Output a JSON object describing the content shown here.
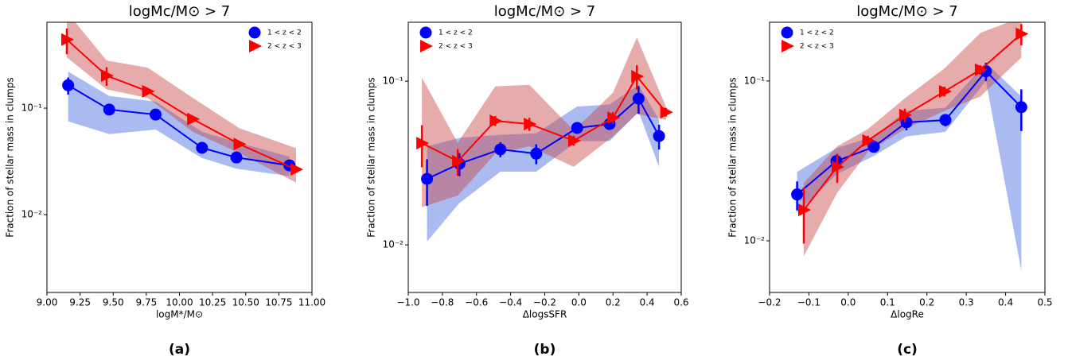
{
  "chart_data": [
    {
      "type": "line",
      "title": "logMc/M⊙ > 7",
      "xlabel": "logM*/M⊙",
      "ylabel": "Fraction of stellar mass in clumps",
      "caption": "(a)",
      "yscale": "log",
      "grid": false,
      "legend": "upper right",
      "xlim": [
        9.0,
        11.0
      ],
      "ylim": [
        0.00186,
        0.64
      ],
      "xticks": [
        {
          "value": 9.0,
          "label": "9.00"
        },
        {
          "value": 9.25,
          "label": "9.25"
        },
        {
          "value": 9.5,
          "label": "9.50"
        },
        {
          "value": 9.75,
          "label": "9.75"
        },
        {
          "value": 10.0,
          "label": "10.00"
        },
        {
          "value": 10.25,
          "label": "10.25"
        },
        {
          "value": 10.5,
          "label": "10.50"
        },
        {
          "value": 10.75,
          "label": "10.75"
        },
        {
          "value": 11.0,
          "label": "11.00"
        }
      ],
      "yticks": [
        {
          "value": 0.01,
          "label": "10⁻²"
        },
        {
          "value": 0.1,
          "label": "10⁻¹"
        }
      ],
      "series": [
        {
          "name": "1 < z < 2",
          "color": "#0000ff",
          "band_color": "#4169e1",
          "marker": "circle",
          "x": [
            9.16,
            9.47,
            9.82,
            10.17,
            10.43,
            10.83
          ],
          "values": [
            0.164,
            0.097,
            0.087,
            0.0424,
            0.0344,
            0.029
          ],
          "errors": [
            0.03,
            0.006,
            0.006,
            0.003,
            0.002,
            0.002
          ],
          "upper": [
            0.22,
            0.13,
            0.115,
            0.06,
            0.048,
            0.035
          ],
          "lower": [
            0.075,
            0.057,
            0.063,
            0.034,
            0.027,
            0.023
          ]
        },
        {
          "name": "2 < z < 3",
          "color": "#ff0000",
          "band_color": "#c84646",
          "marker": "triangle",
          "x": [
            9.15,
            9.45,
            9.76,
            10.1,
            10.45,
            10.88
          ],
          "values": [
            0.44,
            0.202,
            0.144,
            0.079,
            0.046,
            0.0266
          ],
          "errors": [
            0.12,
            0.04,
            0.01,
            0.005,
            0.003,
            0.002
          ],
          "upper": [
            0.8,
            0.28,
            0.24,
            0.125,
            0.065,
            0.042
          ],
          "lower": [
            0.3,
            0.15,
            0.125,
            0.06,
            0.038,
            0.02
          ]
        }
      ]
    },
    {
      "type": "line",
      "title": "logMc/M⊙ > 7",
      "xlabel": "ΔlogsSFR",
      "ylabel": "Fraction of stellar mass in clumps",
      "caption": "(b)",
      "yscale": "log",
      "grid": false,
      "legend": "upper left",
      "xlim": [
        -1.0,
        0.6
      ],
      "ylim": [
        0.00512,
        0.229
      ],
      "xticks": [
        {
          "value": -1.0,
          "label": "−1.0"
        },
        {
          "value": -0.8,
          "label": "−0.8"
        },
        {
          "value": -0.6,
          "label": "−0.6"
        },
        {
          "value": -0.4,
          "label": "−0.4"
        },
        {
          "value": -0.2,
          "label": "−0.2"
        },
        {
          "value": 0.0,
          "label": "0.0"
        },
        {
          "value": 0.2,
          "label": "0.2"
        },
        {
          "value": 0.4,
          "label": "0.4"
        },
        {
          "value": 0.6,
          "label": "0.6"
        }
      ],
      "yticks": [
        {
          "value": 0.01,
          "label": "10⁻²"
        },
        {
          "value": 0.1,
          "label": "10⁻¹"
        }
      ],
      "series": [
        {
          "name": "1 < z < 2",
          "color": "#0000ff",
          "band_color": "#4169e1",
          "marker": "circle",
          "x": [
            -0.89,
            -0.7,
            -0.46,
            -0.25,
            -0.01,
            0.18,
            0.35,
            0.47
          ],
          "values": [
            0.0253,
            0.0313,
            0.0383,
            0.0361,
            0.0518,
            0.0547,
            0.0782,
            0.0462
          ],
          "errors": [
            0.008,
            0.005,
            0.004,
            0.005,
            0.004,
            0.004,
            0.015,
            0.008
          ],
          "upper": [
            0.04,
            0.045,
            0.047,
            0.048,
            0.07,
            0.072,
            0.095,
            0.058
          ],
          "lower": [
            0.0105,
            0.018,
            0.028,
            0.028,
            0.043,
            0.043,
            0.065,
            0.03
          ]
        },
        {
          "name": "2 < z < 3",
          "color": "#ff0000",
          "band_color": "#c84646",
          "marker": "triangle",
          "x": [
            -0.92,
            -0.71,
            -0.49,
            -0.29,
            -0.03,
            0.2,
            0.34,
            0.51
          ],
          "values": [
            0.0418,
            0.0324,
            0.0572,
            0.0547,
            0.0433,
            0.0598,
            0.107,
            0.0647
          ],
          "errors": [
            0.012,
            0.006,
            0.004,
            0.005,
            0.003,
            0.005,
            0.018,
            0.004
          ],
          "upper": [
            0.105,
            0.042,
            0.093,
            0.095,
            0.05,
            0.085,
            0.185,
            0.07
          ],
          "lower": [
            0.017,
            0.02,
            0.036,
            0.04,
            0.03,
            0.046,
            0.063,
            0.058
          ]
        }
      ]
    },
    {
      "type": "line",
      "title": "logMc/M⊙ > 7",
      "xlabel": "ΔlogRe",
      "ylabel": "Fraction of stellar mass in clumps",
      "caption": "(c)",
      "yscale": "log",
      "grid": false,
      "legend": "upper left",
      "xlim": [
        -0.2,
        0.5
      ],
      "ylim": [
        0.00475,
        0.233
      ],
      "xticks": [
        {
          "value": -0.2,
          "label": "−0.2"
        },
        {
          "value": -0.1,
          "label": "−0.1"
        },
        {
          "value": 0.0,
          "label": "0.0"
        },
        {
          "value": 0.1,
          "label": "0.1"
        },
        {
          "value": 0.2,
          "label": "0.2"
        },
        {
          "value": 0.3,
          "label": "0.3"
        },
        {
          "value": 0.4,
          "label": "0.4"
        },
        {
          "value": 0.5,
          "label": "0.5"
        }
      ],
      "yticks": [
        {
          "value": 0.01,
          "label": "10⁻²"
        },
        {
          "value": 0.1,
          "label": "10⁻¹"
        }
      ],
      "series": [
        {
          "name": "1 < z < 2",
          "color": "#0000ff",
          "band_color": "#4169e1",
          "marker": "circle",
          "x": [
            -0.13,
            -0.03,
            0.065,
            0.148,
            0.247,
            0.35,
            0.44
          ],
          "values": [
            0.0195,
            0.0315,
            0.0387,
            0.0551,
            0.057,
            0.115,
            0.0686
          ],
          "errors": [
            0.004,
            0.003,
            0.003,
            0.006,
            0.005,
            0.015,
            0.02
          ],
          "upper": [
            0.027,
            0.038,
            0.045,
            0.065,
            0.068,
            0.13,
            0.08
          ],
          "lower": [
            0.015,
            0.026,
            0.034,
            0.045,
            0.048,
            0.1,
            0.0065
          ]
        },
        {
          "name": "2 < z < 3",
          "color": "#ff0000",
          "band_color": "#c84646",
          "marker": "triangle",
          "x": [
            -0.113,
            -0.028,
            0.05,
            0.144,
            0.245,
            0.336,
            0.44
          ],
          "values": [
            0.0156,
            0.029,
            0.0424,
            0.0611,
            0.0861,
            0.1175,
            0.197
          ],
          "errors": [
            0.006,
            0.006,
            0.003,
            0.006,
            0.006,
            0.008,
            0.03
          ],
          "upper": [
            0.023,
            0.039,
            0.05,
            0.078,
            0.12,
            0.2,
            0.25
          ],
          "lower": [
            0.008,
            0.02,
            0.036,
            0.05,
            0.065,
            0.08,
            0.14
          ]
        }
      ]
    }
  ]
}
